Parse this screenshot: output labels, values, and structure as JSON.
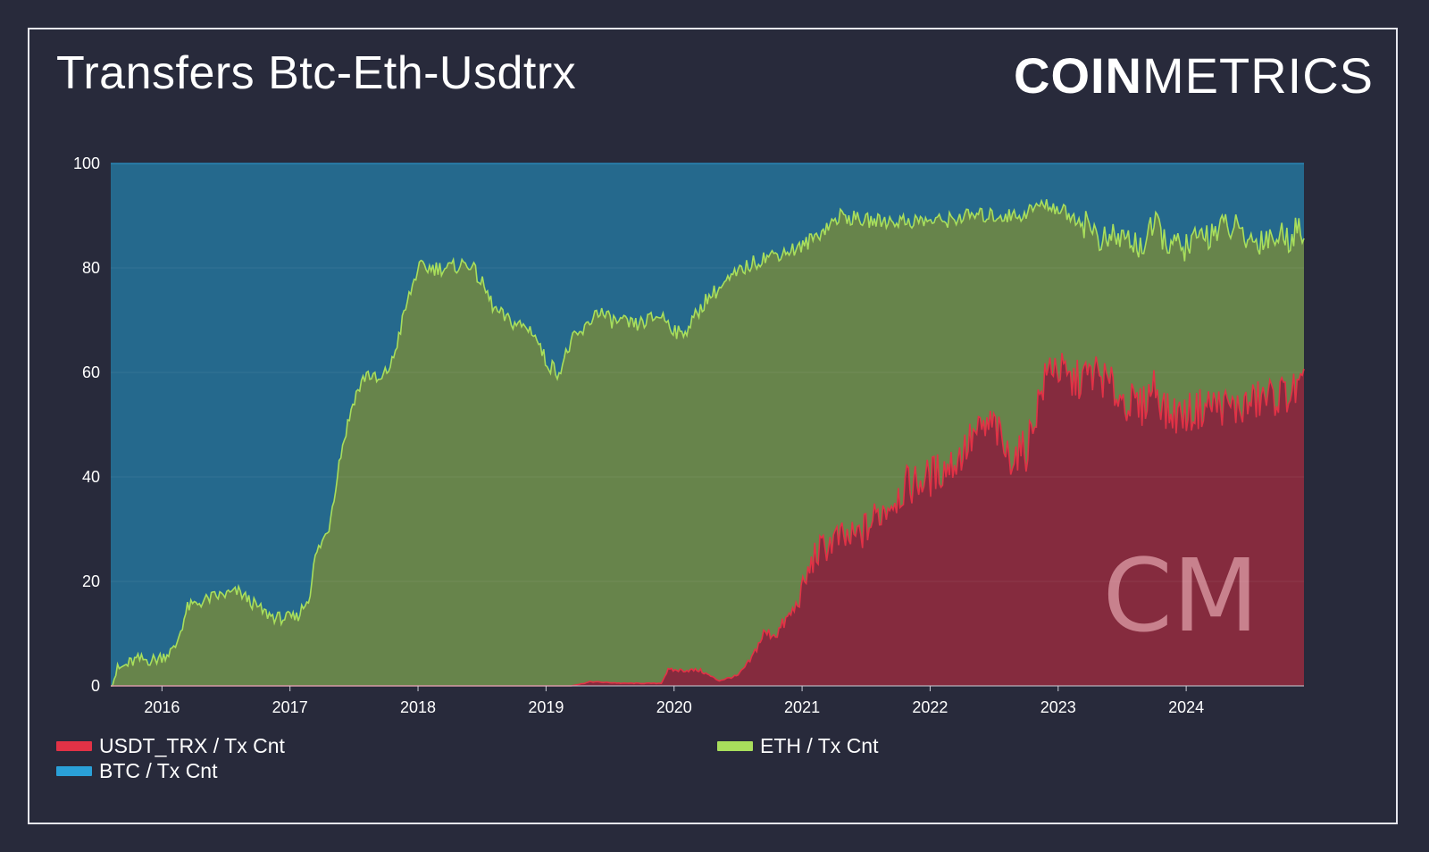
{
  "header": {
    "title": "Transfers Btc-Eth-Usdtrx",
    "logo_bold": "COIN",
    "logo_light": "METRICS",
    "watermark": "CM"
  },
  "colors": {
    "background": "#282a3b",
    "btc": "#25698d",
    "eth": "#67844b",
    "usdt_trx": "#852b3e",
    "btc_line": "#2aa0d8",
    "eth_line": "#a8de5c",
    "usdt_trx_line": "#e23246"
  },
  "chart_data": {
    "type": "area",
    "stacked": true,
    "title": "Transfers Btc-Eth-Usdtrx",
    "xlabel": "",
    "ylabel": "",
    "ylim": [
      0,
      100
    ],
    "y_ticks": [
      0,
      20,
      40,
      60,
      80,
      100
    ],
    "x_ticks": [
      "2016",
      "2017",
      "2018",
      "2019",
      "2020",
      "2021",
      "2022",
      "2023",
      "2024"
    ],
    "x_range": [
      "2015-08",
      "2024-12"
    ],
    "grid": true,
    "legend_position": "bottom",
    "series": [
      {
        "name": "USDT_TRX / Tx Cnt",
        "values": [
          [
            2015.6,
            0
          ],
          [
            2019.2,
            0
          ],
          [
            2019.35,
            0.8
          ],
          [
            2019.6,
            0.5
          ],
          [
            2019.9,
            0.5
          ],
          [
            2019.95,
            3
          ],
          [
            2020.2,
            3
          ],
          [
            2020.35,
            1
          ],
          [
            2020.5,
            2
          ],
          [
            2020.6,
            5
          ],
          [
            2020.7,
            10
          ],
          [
            2020.8,
            10
          ],
          [
            2020.95,
            15
          ],
          [
            2021.1,
            25
          ],
          [
            2021.25,
            28
          ],
          [
            2021.4,
            28
          ],
          [
            2021.5,
            30
          ],
          [
            2021.6,
            33
          ],
          [
            2021.8,
            38
          ],
          [
            2022.0,
            40
          ],
          [
            2022.2,
            43
          ],
          [
            2022.35,
            48
          ],
          [
            2022.5,
            50
          ],
          [
            2022.6,
            44
          ],
          [
            2022.75,
            45
          ],
          [
            2022.85,
            55
          ],
          [
            2022.95,
            62
          ],
          [
            2023.1,
            58
          ],
          [
            2023.3,
            60
          ],
          [
            2023.5,
            55
          ],
          [
            2023.65,
            53
          ],
          [
            2023.75,
            58
          ],
          [
            2023.85,
            52
          ],
          [
            2024.0,
            52
          ],
          [
            2024.2,
            54
          ],
          [
            2024.4,
            53
          ],
          [
            2024.6,
            55
          ],
          [
            2024.8,
            56
          ],
          [
            2024.92,
            57
          ]
        ]
      },
      {
        "name": "ETH / Tx Cnt",
        "values": [
          [
            2015.6,
            0
          ],
          [
            2015.65,
            3
          ],
          [
            2015.8,
            5
          ],
          [
            2015.95,
            5
          ],
          [
            2016.1,
            7
          ],
          [
            2016.2,
            15
          ],
          [
            2016.4,
            17
          ],
          [
            2016.6,
            18
          ],
          [
            2016.8,
            14
          ],
          [
            2016.9,
            13
          ],
          [
            2017.05,
            13
          ],
          [
            2017.15,
            17
          ],
          [
            2017.2,
            25
          ],
          [
            2017.3,
            30
          ],
          [
            2017.4,
            45
          ],
          [
            2017.5,
            55
          ],
          [
            2017.6,
            60
          ],
          [
            2017.7,
            58
          ],
          [
            2017.8,
            62
          ],
          [
            2017.9,
            72
          ],
          [
            2018.0,
            80
          ],
          [
            2018.1,
            80
          ],
          [
            2018.25,
            80
          ],
          [
            2018.4,
            81
          ],
          [
            2018.5,
            77
          ],
          [
            2018.6,
            72
          ],
          [
            2018.7,
            70
          ],
          [
            2018.9,
            68
          ],
          [
            2019.0,
            62
          ],
          [
            2019.1,
            60
          ],
          [
            2019.2,
            66
          ],
          [
            2019.3,
            68
          ],
          [
            2019.4,
            72
          ],
          [
            2019.5,
            70
          ],
          [
            2019.7,
            69
          ],
          [
            2019.9,
            71
          ],
          [
            2020.05,
            67
          ],
          [
            2020.15,
            70
          ],
          [
            2020.25,
            74
          ],
          [
            2020.4,
            77
          ],
          [
            2020.55,
            80
          ],
          [
            2020.7,
            82
          ],
          [
            2020.85,
            83
          ],
          [
            2021.0,
            84
          ],
          [
            2021.15,
            87
          ],
          [
            2021.3,
            90
          ],
          [
            2021.5,
            89
          ],
          [
            2021.7,
            89
          ],
          [
            2021.9,
            89
          ],
          [
            2022.1,
            89
          ],
          [
            2022.3,
            90
          ],
          [
            2022.5,
            90
          ],
          [
            2022.7,
            90
          ],
          [
            2022.85,
            92
          ],
          [
            2022.95,
            92
          ],
          [
            2023.1,
            90
          ],
          [
            2023.25,
            88
          ],
          [
            2023.35,
            85
          ],
          [
            2023.5,
            86
          ],
          [
            2023.65,
            84
          ],
          [
            2023.75,
            88
          ],
          [
            2023.9,
            84
          ],
          [
            2024.0,
            84
          ],
          [
            2024.2,
            87
          ],
          [
            2024.35,
            88
          ],
          [
            2024.5,
            85
          ],
          [
            2024.65,
            86
          ],
          [
            2024.8,
            86
          ],
          [
            2024.92,
            88
          ]
        ]
      },
      {
        "name": "BTC / Tx Cnt",
        "values": [
          [
            2015.6,
            100
          ],
          [
            2024.92,
            100
          ]
        ]
      }
    ]
  },
  "legend": [
    {
      "label": "USDT_TRX / Tx Cnt",
      "color": "#e23246"
    },
    {
      "label": "ETH / Tx Cnt",
      "color": "#a8de5c"
    },
    {
      "label": "BTC / Tx Cnt",
      "color": "#2aa0d8"
    }
  ]
}
